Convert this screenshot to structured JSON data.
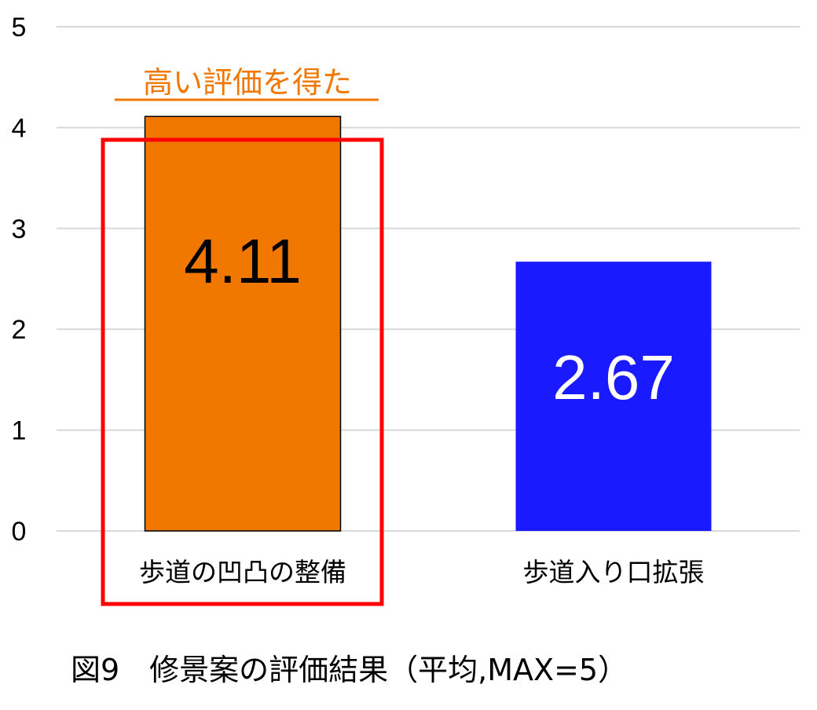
{
  "chart_data": {
    "type": "bar",
    "title": "図9　修景案の評価結果（平均,MAX=5）",
    "categories": [
      "歩道の凹凸の整備",
      "歩道入り口拡張"
    ],
    "values": [
      4.11,
      2.67
    ],
    "data_labels": [
      "4.11",
      "2.67"
    ],
    "bar_colors": [
      "#F07800",
      "#1A1AFF"
    ],
    "data_label_colors": [
      "#000000",
      "#FFFFFF"
    ],
    "ylim": [
      0,
      5
    ],
    "yticks": [
      "0",
      "1",
      "2",
      "3",
      "4",
      "5"
    ],
    "grid": true,
    "xlabel": "",
    "ylabel": "",
    "annotation": {
      "text": "高い評価を得た",
      "color": "#F07800",
      "underlined": true,
      "target_category": "歩道の凹凸の整備",
      "highlight_box_color": "#FF0000"
    }
  }
}
